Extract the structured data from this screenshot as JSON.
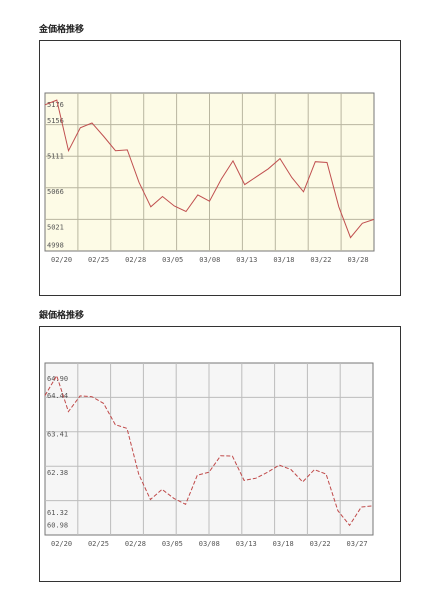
{
  "chart_data": [
    {
      "type": "line",
      "title": "金価格推移",
      "x_labels": [
        "02/20",
        "02/25",
        "02/28",
        "03/05",
        "03/08",
        "03/13",
        "03/18",
        "03/22",
        "03/28"
      ],
      "y_ticks": [
        "5176",
        "5156",
        "5111",
        "5066",
        "5021",
        "4998"
      ],
      "y_range": [
        4990,
        5190
      ],
      "grid": true,
      "colors": {
        "plot_bg": "#fdfbe6",
        "grid": "#b9b6a0",
        "line": "#c05050"
      },
      "series": [
        {
          "style": "solid",
          "x": [
            0,
            1,
            2,
            3,
            4,
            5,
            6,
            7,
            8,
            9,
            10,
            11,
            12,
            13,
            14,
            15,
            16,
            17,
            18,
            19,
            20,
            21,
            22,
            23,
            24,
            25,
            26,
            27,
            28
          ],
          "y": [
            5175,
            5181,
            5117,
            5146,
            5152,
            5135,
            5117,
            5118,
            5077,
            5046,
            5059,
            5047,
            5040,
            5061,
            5053,
            5081,
            5104,
            5074,
            5084,
            5094,
            5107,
            5083,
            5065,
            5103,
            5102,
            5046,
            5007,
            5025,
            5030
          ]
        }
      ]
    },
    {
      "type": "line",
      "title": "銀価格推移",
      "x_labels": [
        "02/20",
        "02/25",
        "02/28",
        "03/05",
        "03/08",
        "03/13",
        "03/18",
        "03/22",
        "03/27"
      ],
      "y_ticks": [
        "64.90",
        "64.44",
        "63.41",
        "62.38",
        "61.32",
        "60.98"
      ],
      "y_range": [
        60.7,
        65.3
      ],
      "grid": true,
      "colors": {
        "plot_bg": "#f6f6f6",
        "grid": "#bdbdbd",
        "line": "#c04a4a"
      },
      "series": [
        {
          "style": "dashed",
          "x": [
            0,
            1,
            2,
            3,
            4,
            5,
            6,
            7,
            8,
            9,
            10,
            11,
            12,
            13,
            14,
            15,
            16,
            17,
            18,
            19,
            20,
            21,
            22,
            23,
            24,
            25,
            26,
            27,
            28
          ],
          "y": [
            64.43,
            64.96,
            64.0,
            64.42,
            64.4,
            64.22,
            63.65,
            63.55,
            62.33,
            61.65,
            61.92,
            61.68,
            61.52,
            62.3,
            62.38,
            62.82,
            62.81,
            62.16,
            62.22,
            62.38,
            62.57,
            62.45,
            62.12,
            62.45,
            62.33,
            61.35,
            60.96,
            61.45,
            61.48
          ]
        }
      ]
    }
  ]
}
